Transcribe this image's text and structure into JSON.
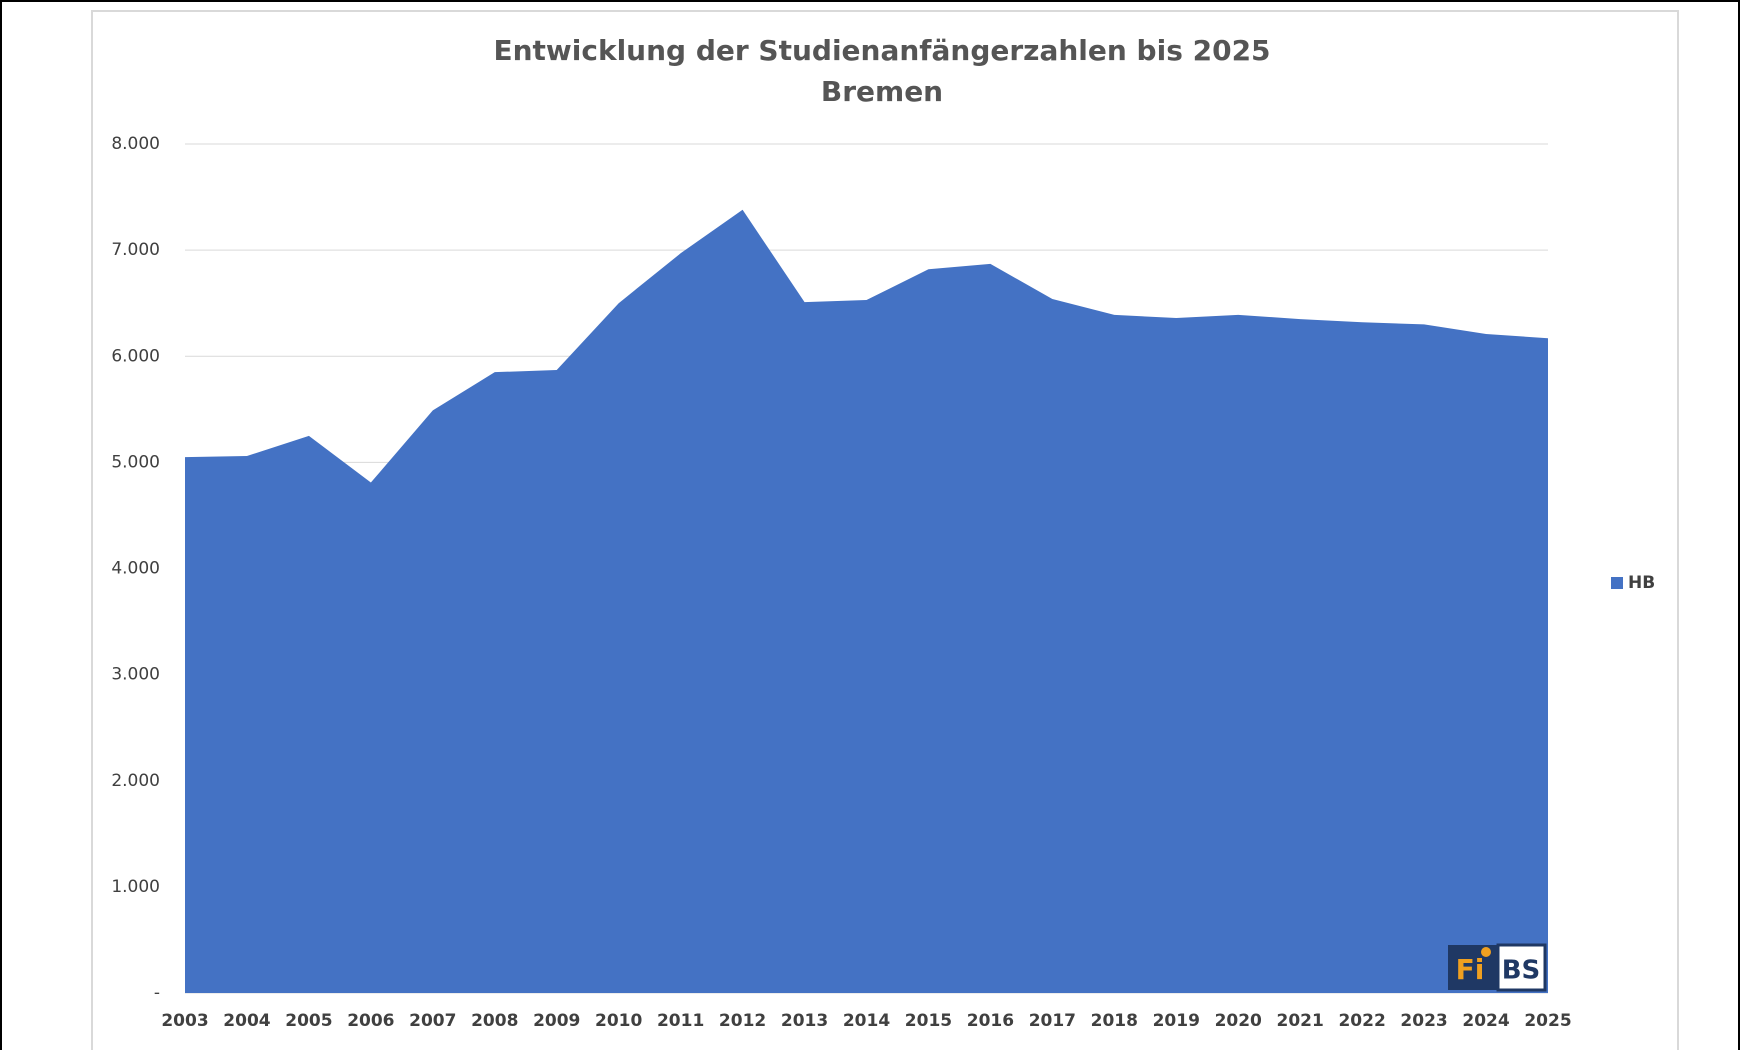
{
  "chart_data": {
    "type": "area",
    "title": "Entwicklung der Studienanfängerzahlen bis 2025",
    "subtitle": "Bremen",
    "categories": [
      "2003",
      "2004",
      "2005",
      "2006",
      "2007",
      "2008",
      "2009",
      "2010",
      "2011",
      "2012",
      "2013",
      "2014",
      "2015",
      "2016",
      "2017",
      "2018",
      "2019",
      "2020",
      "2021",
      "2022",
      "2023",
      "2024",
      "2025"
    ],
    "series": [
      {
        "name": "HB",
        "color": "#4472c4",
        "values": [
          5050,
          5060,
          5250,
          4810,
          5490,
          5850,
          5870,
          6500,
          6970,
          7380,
          6510,
          6530,
          6820,
          6870,
          6540,
          6390,
          6360,
          6390,
          6350,
          6320,
          6300,
          6210,
          6170
        ]
      }
    ],
    "ylim": [
      0,
      8000
    ],
    "yticks": [
      {
        "value": 0,
        "label": "-"
      },
      {
        "value": 1000,
        "label": "1.000"
      },
      {
        "value": 2000,
        "label": "2.000"
      },
      {
        "value": 3000,
        "label": "3.000"
      },
      {
        "value": 4000,
        "label": "4.000"
      },
      {
        "value": 5000,
        "label": "5.000"
      },
      {
        "value": 6000,
        "label": "6.000"
      },
      {
        "value": 7000,
        "label": "7.000"
      },
      {
        "value": 8000,
        "label": "8.000"
      }
    ],
    "grid": true,
    "legend": "right",
    "logo": {
      "left": "Fi",
      "right": "BS"
    }
  }
}
